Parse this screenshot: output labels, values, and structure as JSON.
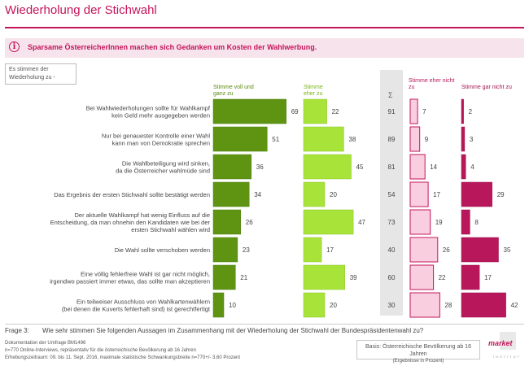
{
  "header": {
    "title": "Wiederholung der Stichwahl",
    "banner_text": "Sparsame ÖsterreicherInnen machen sich Gedanken um Kosten der Wahlwerbung.",
    "question_box": "Es stimmen der\nWiederholung zu -",
    "sum_symbol": "Σ"
  },
  "colors": {
    "brand": "#c4145a",
    "agree_full": "#5f9413",
    "agree_rather": "#a8e33a",
    "disagree_rather": "#f9cfe0",
    "disagree_full": "#b8175c"
  },
  "chart_data": {
    "type": "bar",
    "orientation": "horizontal-divided",
    "unit": "Prozent",
    "series": [
      {
        "name": "Stimme voll und ganz zu",
        "values": [
          69,
          51,
          36,
          34,
          26,
          23,
          21,
          10
        ]
      },
      {
        "name": "Stimme eher zu",
        "values": [
          22,
          38,
          45,
          20,
          47,
          17,
          39,
          20
        ]
      },
      {
        "name": "Stimme eher nicht zu",
        "values": [
          7,
          9,
          14,
          17,
          19,
          26,
          22,
          28
        ]
      },
      {
        "name": "Stimme gar nicht zu",
        "values": [
          2,
          3,
          4,
          29,
          8,
          35,
          17,
          42
        ]
      }
    ],
    "sums": [
      91,
      89,
      81,
      54,
      73,
      40,
      60,
      30
    ],
    "categories": [
      "Bei Wahlwiederholungen sollte für Wahlkampf\nkein Geld mehr ausgegeben werden",
      "Nur bei genauester Kontrolle einer Wahl\nkann man von Demokratie sprechen",
      "Die Wahlbeteiligung wird sinken,\nda die Österreicher wahlmüde sind",
      "Das Ergebnis der ersten Stichwahl sollte bestätigt werden",
      "Der aktuelle Wahlkampf hat wenig Einfluss auf die\nEntscheidung, da man ohnehin den Kandidaten wie bei der\nersten Stichwahl wählen wird",
      "Die Wahl sollte verschoben werden",
      "Eine völlig fehlerfreie Wahl ist gar nicht möglich,\nirgendwo passiert immer etwas, das sollte man akzeptieren",
      "Ein teilweiser Ausschluss von Wahlkartenwählern\n(bei denen die Kuverts fehlerhaft sind) ist gerechtfertigt"
    ],
    "column_headers": [
      "Stimme voll und\nganz zu",
      "Stimme\neher zu",
      "Stimme eher nicht\nzu",
      "Stimme gar nicht zu"
    ]
  },
  "footer": {
    "frage_label": "Frage 3:",
    "frage_text": "Wie sehr stimmen Sie folgenden Aussagen im Zusammenhang mit der Wiederholung der Stichwahl der Bundespräsidentenwahl zu?",
    "doc_line": "Dokumentation der Umfrage BM1496",
    "method_line": "n=770 Online-Interviews, repräsentativ für die österreichische Bevölkerung ab 16 Jahren",
    "period_line": "Erhebungszeitraum: 09. bis 11. Sept. 2016, maximale statistische Schwankungsbreite n=770+/- 3,60 Prozent",
    "basis_line1": "Basis: Österreichische Bevölkerung ab 16 Jahren",
    "basis_line2": "(Ergebnisse in Prozent)",
    "logo_text": "market",
    "logo_sub": "INSTITUT"
  }
}
